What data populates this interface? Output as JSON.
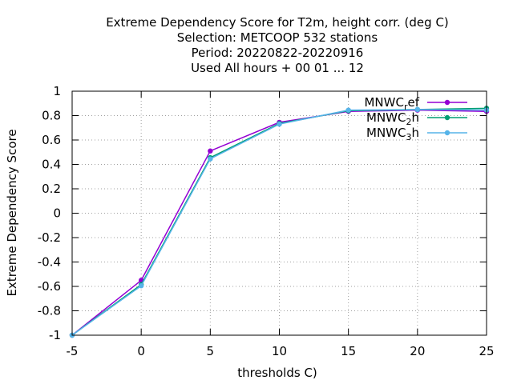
{
  "chart_data": {
    "type": "line",
    "title_lines": [
      "Extreme Dependency Score  for T2m, height corr. (deg C)",
      "Selection: METCOOP    532 stations",
      "Period: 20220822-20220916",
      "Used  All hours  + 00 01 ... 12"
    ],
    "xlabel": "thresholds C)",
    "ylabel": "Extreme Dependency Score",
    "xlim": [
      -5,
      25
    ],
    "ylim": [
      -1,
      1
    ],
    "xticks": [
      "-5",
      "0",
      "5",
      "10",
      "15",
      "20",
      "25"
    ],
    "yticks": [
      "-1",
      "-0.8",
      "-0.6",
      "-0.4",
      "-0.2",
      "0",
      "0.2",
      "0.4",
      "0.6",
      "0.8",
      "1"
    ],
    "grid": true,
    "legend_position": "top-right",
    "x": [
      -5,
      0,
      5,
      10,
      15,
      20,
      25
    ],
    "series": [
      {
        "name": "MNWC",
        "sub": "r",
        "name_tail": "ef",
        "color": "#9400d3",
        "values": [
          -1,
          -0.55,
          0.51,
          0.745,
          0.835,
          0.845,
          0.835
        ]
      },
      {
        "name": "MNWC",
        "sub": "2",
        "name_tail": "h",
        "color": "#009e73",
        "values": [
          -1,
          -0.585,
          0.455,
          0.735,
          0.84,
          0.85,
          0.86
        ]
      },
      {
        "name": "MNWC",
        "sub": "3",
        "name_tail": "h",
        "color": "#56b4e9",
        "values": [
          -1,
          -0.595,
          0.445,
          0.73,
          0.845,
          0.85,
          0.845
        ]
      }
    ]
  }
}
